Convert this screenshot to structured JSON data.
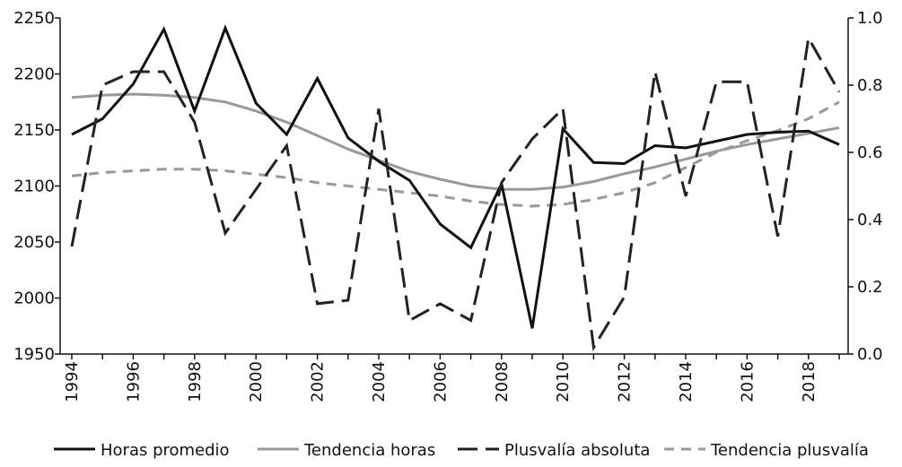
{
  "chart_data": {
    "type": "line",
    "x": [
      1994,
      1995,
      1996,
      1997,
      1998,
      1999,
      2000,
      2001,
      2002,
      2003,
      2004,
      2005,
      2006,
      2007,
      2008,
      2009,
      2010,
      2011,
      2012,
      2013,
      2014,
      2015,
      2016,
      2017,
      2018,
      2019
    ],
    "x_tick_labels": [
      "1994",
      "1996",
      "1998",
      "2000",
      "2002",
      "2004",
      "2006",
      "2008",
      "2010",
      "2012",
      "2014",
      "2016",
      "2018"
    ],
    "y_left": {
      "range": [
        1950,
        2250
      ],
      "ticks": [
        "1950",
        "2000",
        "2050",
        "2100",
        "2150",
        "2200",
        "2250"
      ]
    },
    "y_right": {
      "range": [
        0.0,
        1.0
      ],
      "ticks": [
        "0.0",
        "0.2",
        "0.4",
        "0.6",
        "0.8",
        "1.0"
      ]
    },
    "legend_position": "bottom",
    "grid": false,
    "series": [
      {
        "name": "Horas promedio",
        "axis": "left",
        "color": "#111111",
        "dash": "solid",
        "values": [
          2146,
          2160,
          2191,
          2240,
          2167,
          2241,
          2174,
          2146,
          2196,
          2143,
          2122,
          2105,
          2066,
          2045,
          2102,
          1973,
          2151,
          2121,
          2120,
          2136,
          2134,
          2140,
          2146,
          2148,
          2149,
          2137
        ]
      },
      {
        "name": "Tendencia horas",
        "axis": "left",
        "color": "#999999",
        "dash": "solid",
        "values": [
          2179,
          2181,
          2182,
          2181,
          2179,
          2175,
          2167,
          2157,
          2145,
          2133,
          2123,
          2113,
          2106,
          2100,
          2097,
          2097,
          2099,
          2104,
          2111,
          2117,
          2124,
          2131,
          2137,
          2142,
          2147,
          2152
        ]
      },
      {
        "name": "Plusvalía absoluta",
        "axis": "right",
        "color": "#222222",
        "dash": "long",
        "values": [
          0.32,
          0.8,
          0.84,
          0.84,
          0.69,
          0.36,
          0.49,
          0.62,
          0.15,
          0.16,
          0.73,
          0.1,
          0.15,
          0.1,
          0.51,
          0.64,
          0.73,
          0.02,
          0.17,
          0.84,
          0.47,
          0.81,
          0.81,
          0.35,
          0.94,
          0.78
        ]
      },
      {
        "name": "Tendencia plusvalía",
        "axis": "right",
        "color": "#999999",
        "dash": "short",
        "values": [
          0.53,
          0.54,
          0.545,
          0.55,
          0.55,
          0.545,
          0.535,
          0.525,
          0.51,
          0.5,
          0.49,
          0.48,
          0.47,
          0.455,
          0.445,
          0.44,
          0.445,
          0.46,
          0.48,
          0.51,
          0.555,
          0.6,
          0.635,
          0.665,
          0.7,
          0.75
        ]
      }
    ]
  }
}
